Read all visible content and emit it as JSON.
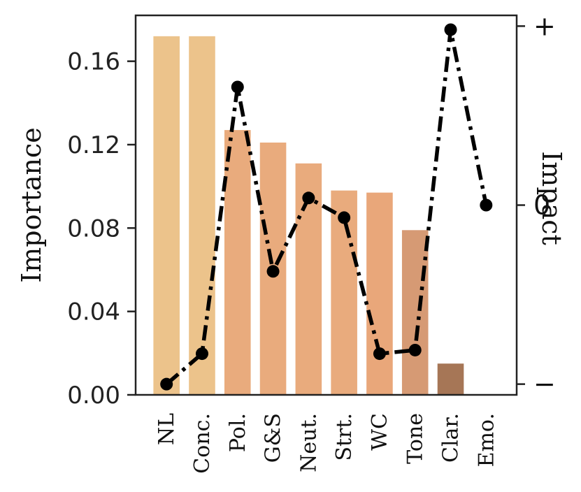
{
  "chart_data": {
    "type": "bar",
    "categories": [
      "NL",
      "Conc.",
      "Pol.",
      "G&S",
      "Neut.",
      "Strt.",
      "WC",
      "Tone",
      "Clar.",
      "Emo."
    ],
    "series": [
      {
        "values": [
          0.172,
          0.172,
          0.127,
          0.121,
          0.111,
          0.098,
          0.097,
          0.079,
          0.015,
          0.0
        ],
        "colors": [
          "#ecc38b",
          "#ecc38b",
          "#e9ab7d",
          "#e9ab7d",
          "#e9ab7d",
          "#e9ab7d",
          "#e9a77a",
          "#d69a74",
          "#a67656",
          "#a67656"
        ]
      },
      {
        "type": "line",
        "axis": "right",
        "values": [
          -1.0,
          -0.83,
          0.66,
          -0.37,
          0.04,
          -0.07,
          -0.83,
          -0.81,
          0.98,
          0.0
        ],
        "color": "#000000",
        "linestyle": "dashdot"
      }
    ],
    "ylabel": "Importance",
    "ylim": [
      0,
      0.182
    ],
    "yticks": [
      "0.00",
      "0.04",
      "0.08",
      "0.12",
      "0.16"
    ],
    "y2label": "Impact",
    "y2lim": [
      -1.06,
      1.06
    ],
    "y2ticks": [
      "+",
      "0",
      "−"
    ],
    "grid": false
  }
}
